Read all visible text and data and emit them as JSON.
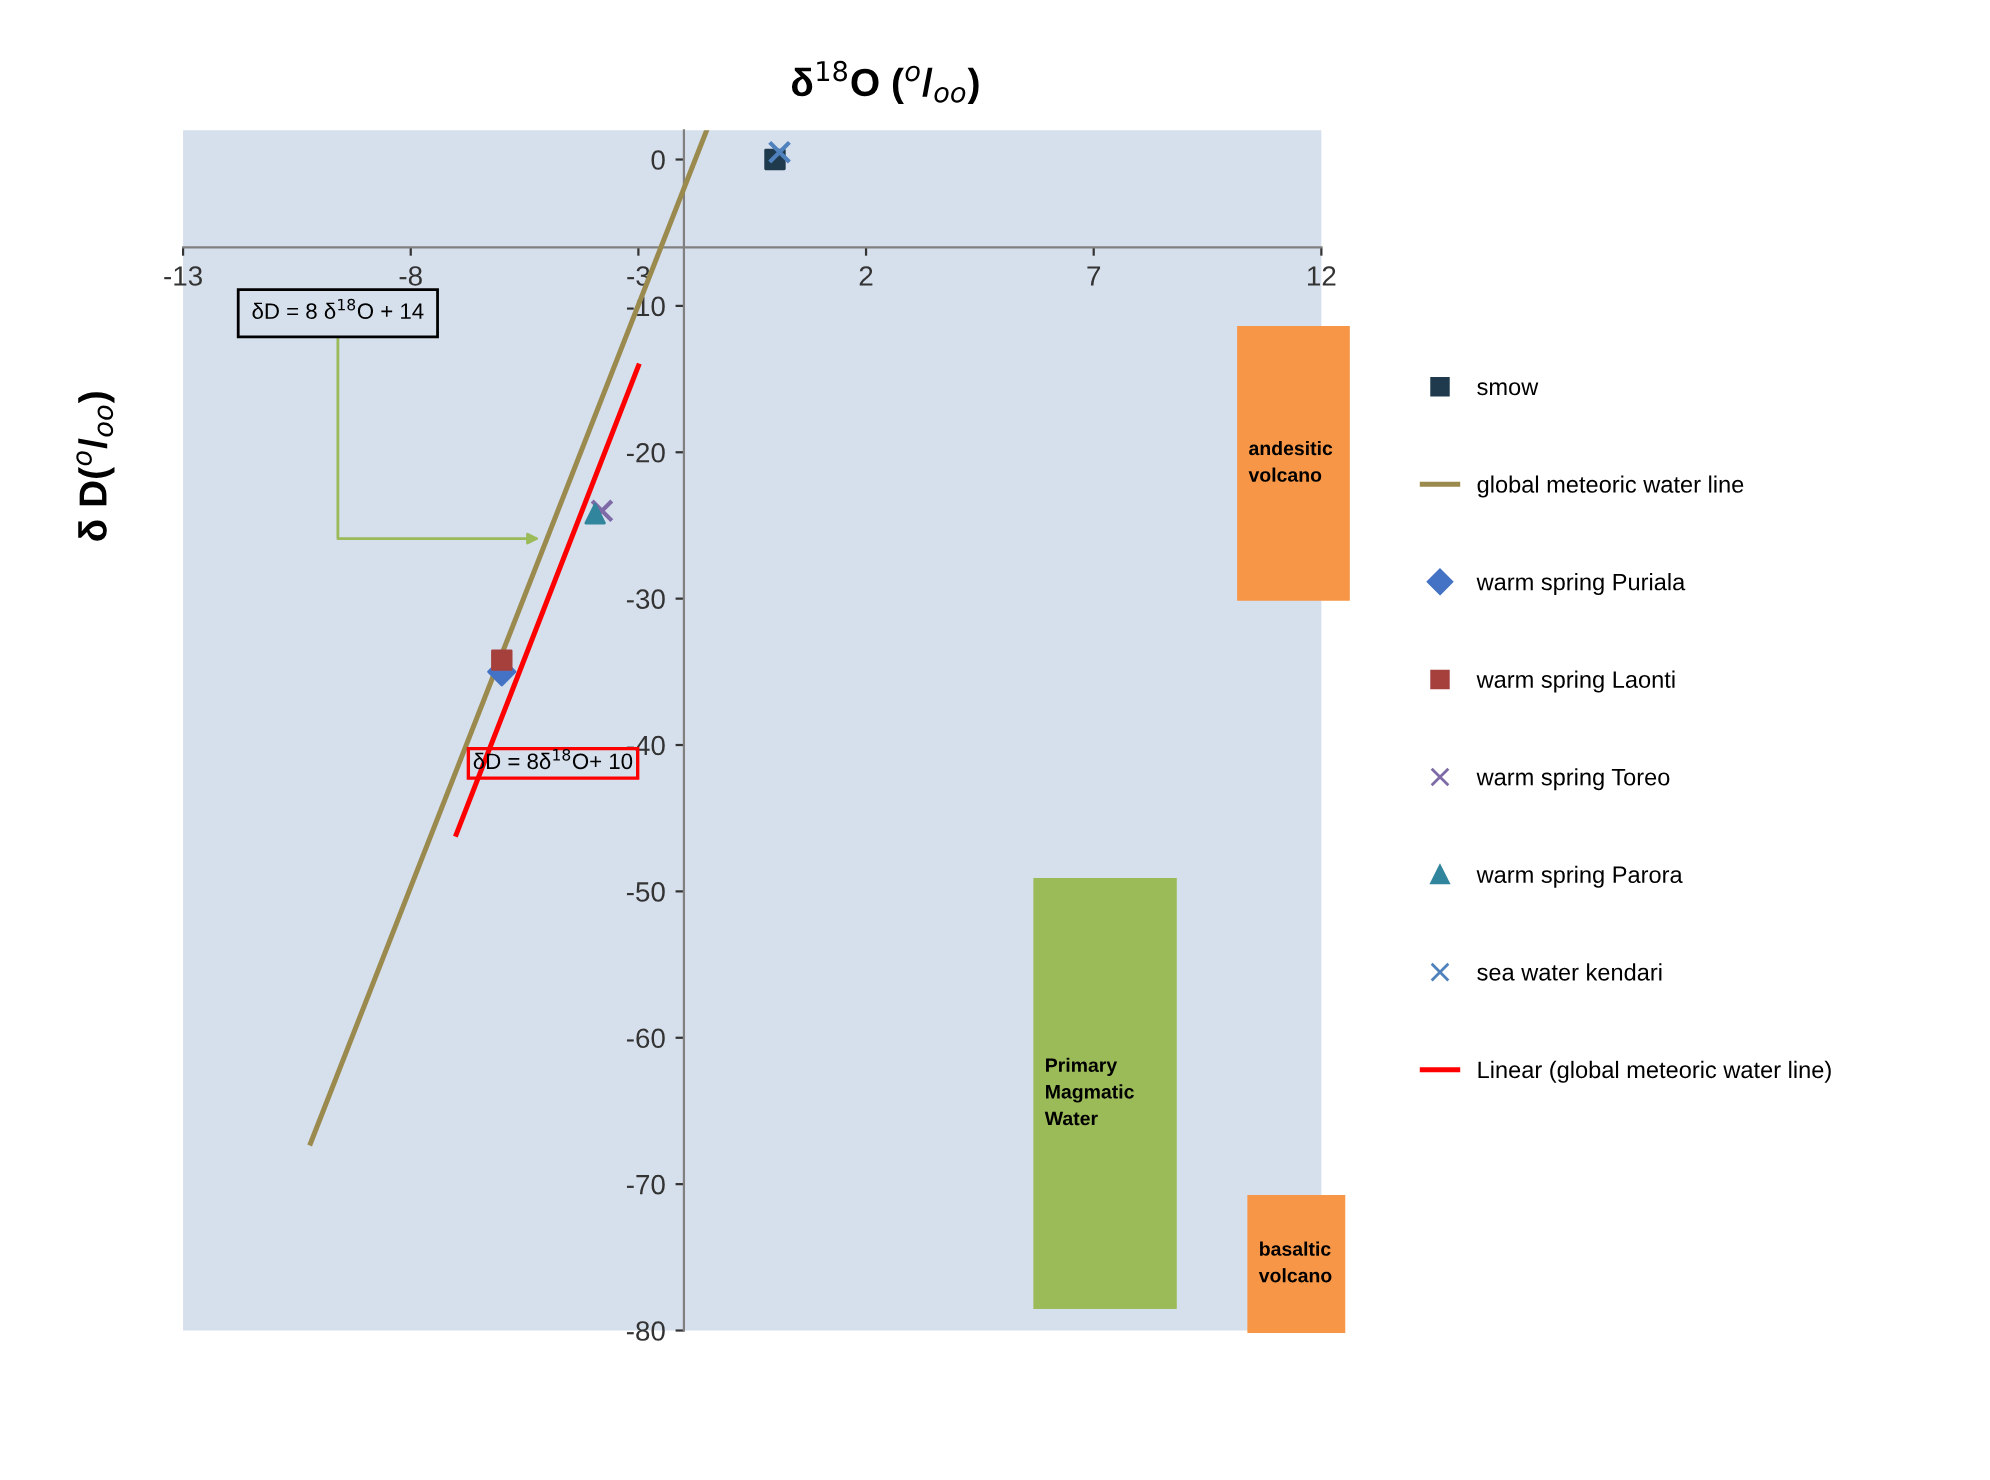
{
  "chart_data": {
    "type": "scatter",
    "title": "δ$^{18}$O ($^{o}$/$_{oo}$)",
    "ylabel": "δ D($^{o}$/$_{oo}$)",
    "xlim": [
      -13,
      12
    ],
    "ylim": [
      -80,
      2
    ],
    "xticks": [
      -13,
      -8,
      -3,
      2,
      7,
      12
    ],
    "yticks": [
      -80,
      -70,
      -60,
      -50,
      -40,
      -30,
      -20,
      -10,
      0
    ],
    "grid": false,
    "legend": "right",
    "series": [
      {
        "name": "smow",
        "color": "#1f3a4d",
        "marker": "square",
        "x": [
          0.0
        ],
        "values": [
          0.0
        ]
      },
      {
        "name": "global meteoric water line",
        "type": "line",
        "color": "#9b8a4e",
        "marker": "none",
        "x": [
          -10.2,
          -1.5
        ],
        "values": [
          -67.2,
          2
        ]
      },
      {
        "name": "warm spring Puriala",
        "color": "#4472c4",
        "marker": "diamond",
        "x": [
          -6.0
        ],
        "values": [
          -35.0
        ]
      },
      {
        "name": "warm spring Laonti",
        "color": "#a5403d",
        "marker": "square",
        "x": [
          -6.0
        ],
        "values": [
          -34.2
        ]
      },
      {
        "name": "warm spring Toreo",
        "color": "#7e6aa6",
        "marker": "cross",
        "x": [
          -3.8
        ],
        "values": [
          -24.0
        ]
      },
      {
        "name": "warm spring Parora",
        "color": "#31859c",
        "marker": "triangle",
        "x": [
          -3.95
        ],
        "values": [
          -24.2
        ]
      },
      {
        "name": "sea water kendari",
        "color": "#4f81bd",
        "marker": "cross",
        "x": [
          0.1
        ],
        "values": [
          0.5
        ]
      },
      {
        "name": "Linear (global meteoric water line)",
        "type": "line",
        "color": "#ff0000",
        "marker": "none",
        "x": [
          -7.0,
          -3.0
        ],
        "values": [
          -46.1,
          -14.1
        ]
      }
    ],
    "annotations": [
      {
        "text": "δD = 8 δ$^{18}$O + 14",
        "x": -5.05,
        "y": -25.9
      },
      "δD = 8δ$^{18}$O+ 10",
      "andesitic\nvolcano",
      "Primary\nMagmatic\nWater",
      "basaltic\nvolcano"
    ]
  }
}
